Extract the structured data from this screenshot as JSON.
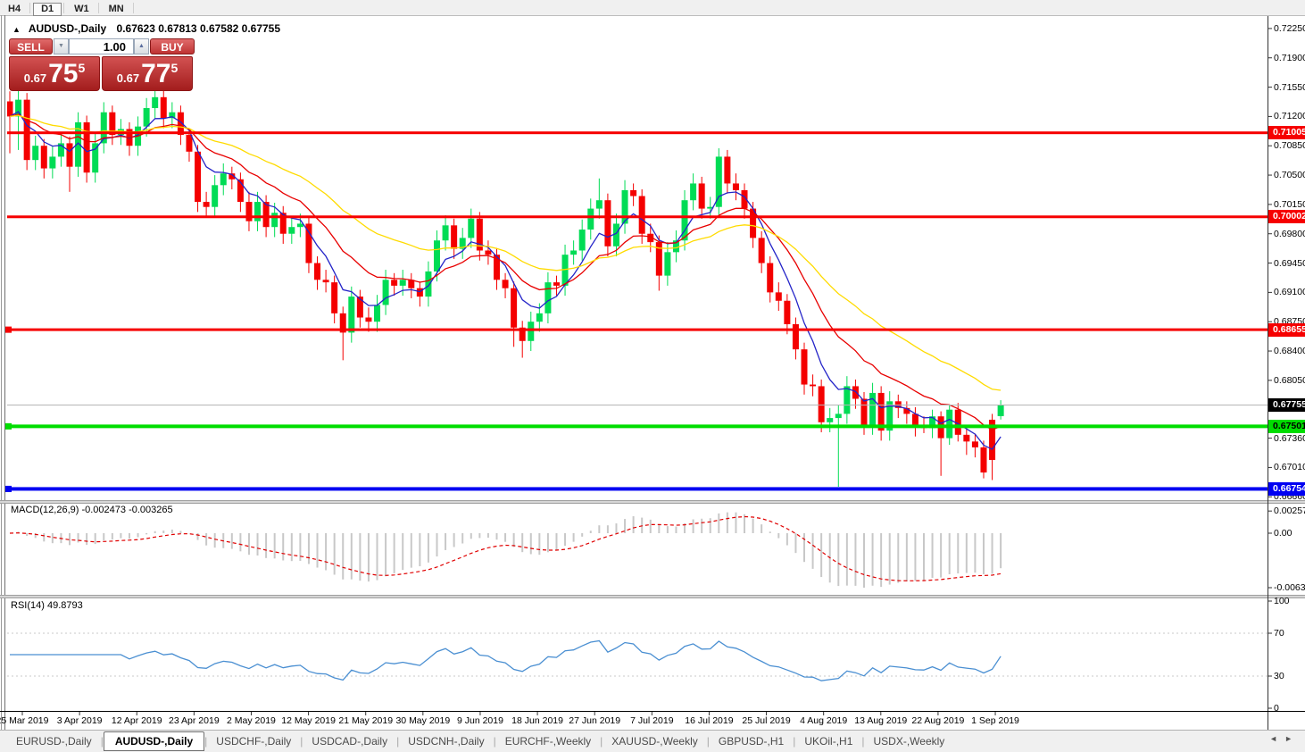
{
  "toolbar": {
    "timeframes": [
      {
        "label": "H4",
        "active": false
      },
      {
        "label": "D1",
        "active": true
      },
      {
        "label": "W1",
        "active": false
      },
      {
        "label": "MN",
        "active": false
      }
    ]
  },
  "title_bar": {
    "collapse_icon": "▲",
    "symbol": "AUDUSD-,Daily",
    "ohlc": "0.67623 0.67813 0.67582 0.67755"
  },
  "trade_panel": {
    "sell_label": "SELL",
    "buy_label": "BUY",
    "volume": "1.00",
    "spin_down_icon": "▼",
    "spin_up_icon": "▲",
    "sell_price": {
      "prefix": "0.67",
      "big": "75",
      "sup": "5"
    },
    "buy_price": {
      "prefix": "0.67",
      "big": "77",
      "sup": "5"
    }
  },
  "chart_data": {
    "type": "candlestick",
    "symbol": "AUDUSD-",
    "timeframe": "Daily",
    "bull_color": "#00DC55",
    "bear_color": "#F40000",
    "price_axis": {
      "ticks": [
        "0.72250",
        "0.71900",
        "0.71550",
        "0.71200",
        "0.70850",
        "0.70500",
        "0.70150",
        "0.69800",
        "0.69450",
        "0.69100",
        "0.68750",
        "0.68400",
        "0.68050",
        "0.67710",
        "0.67360",
        "0.67010",
        "0.66660"
      ],
      "top_price": 0.72345,
      "bottom_price": 0.6662
    },
    "time_axis": [
      "25 Mar 2019",
      "3 Apr 2019",
      "12 Apr 2019",
      "23 Apr 2019",
      "2 May 2019",
      "12 May 2019",
      "21 May 2019",
      "30 May 2019",
      "9 Jun 2019",
      "18 Jun 2019",
      "27 Jun 2019",
      "7 Jul 2019",
      "16 Jul 2019",
      "25 Jul 2019",
      "4 Aug 2019",
      "13 Aug 2019",
      "22 Aug 2019",
      "1 Sep 2019"
    ],
    "current_price": {
      "price": 0.67755,
      "label": "0.67755",
      "bg": "#000000",
      "text_color": "#ffffff",
      "line_color": "#b6b6b6"
    },
    "h_lines": [
      {
        "price": 0.71005,
        "label": "0.71005",
        "color": "#F60000",
        "thickness": 3,
        "label_text_color": "#ffffff",
        "handle": false
      },
      {
        "price": 0.70002,
        "label": "0.70002",
        "color": "#F60000",
        "thickness": 3,
        "label_text_color": "#ffffff",
        "handle": false
      },
      {
        "price": 0.68655,
        "label": "0.68655",
        "color": "#F60000",
        "thickness": 3,
        "label_text_color": "#ffffff",
        "handle": true
      },
      {
        "price": 0.67501,
        "label": "0.67501",
        "color": "#00DD00",
        "thickness": 4,
        "label_text_color": "#000000",
        "handle": true
      },
      {
        "price": 0.66754,
        "label": "0.66754",
        "color": "#0000F2",
        "thickness": 4,
        "label_text_color": "#ffffff",
        "handle": true
      }
    ],
    "moving_averages": [
      {
        "name": "fast-ma",
        "period": 6,
        "color": "#2424C8"
      },
      {
        "name": "mid-ma",
        "period": 14,
        "color": "#E80000"
      },
      {
        "name": "slow-ma",
        "period": 30,
        "color": "#FFDB00"
      }
    ],
    "candles": [
      [
        0.7138,
        0.715,
        0.7076,
        0.712
      ],
      [
        0.712,
        0.7152,
        0.708,
        0.714
      ],
      [
        0.714,
        0.7148,
        0.7056,
        0.7068
      ],
      [
        0.7068,
        0.7097,
        0.7056,
        0.7085
      ],
      [
        0.7085,
        0.7093,
        0.7046,
        0.7058
      ],
      [
        0.7058,
        0.7084,
        0.7046,
        0.7072
      ],
      [
        0.7072,
        0.71,
        0.706,
        0.7088
      ],
      [
        0.7088,
        0.7096,
        0.703,
        0.706
      ],
      [
        0.706,
        0.7125,
        0.7048,
        0.7113
      ],
      [
        0.7113,
        0.7121,
        0.7041,
        0.7053
      ],
      [
        0.7053,
        0.71,
        0.7041,
        0.7088
      ],
      [
        0.7088,
        0.7137,
        0.7076,
        0.7125
      ],
      [
        0.7125,
        0.7133,
        0.7086,
        0.7098
      ],
      [
        0.7098,
        0.7117,
        0.7086,
        0.7105
      ],
      [
        0.7105,
        0.7113,
        0.7073,
        0.7085
      ],
      [
        0.7085,
        0.712,
        0.7073,
        0.7108
      ],
      [
        0.7108,
        0.7142,
        0.7096,
        0.713
      ],
      [
        0.713,
        0.7151,
        0.7118,
        0.7143
      ],
      [
        0.7143,
        0.7151,
        0.7106,
        0.7118
      ],
      [
        0.7118,
        0.7137,
        0.7106,
        0.7125
      ],
      [
        0.7125,
        0.7133,
        0.7086,
        0.7098
      ],
      [
        0.7098,
        0.7106,
        0.7066,
        0.7078
      ],
      [
        0.7078,
        0.7086,
        0.7006,
        0.7018
      ],
      [
        0.7018,
        0.703,
        0.7,
        0.7012
      ],
      [
        0.7012,
        0.705,
        0.7,
        0.7038
      ],
      [
        0.7038,
        0.7064,
        0.7026,
        0.7052
      ],
      [
        0.7052,
        0.706,
        0.7033,
        0.7045
      ],
      [
        0.7045,
        0.7053,
        0.7006,
        0.7018
      ],
      [
        0.7018,
        0.703,
        0.6983,
        0.6995
      ],
      [
        0.6995,
        0.703,
        0.6983,
        0.7018
      ],
      [
        0.7018,
        0.7026,
        0.6976,
        0.6988
      ],
      [
        0.6988,
        0.7017,
        0.6976,
        0.7005
      ],
      [
        0.7005,
        0.7013,
        0.6968,
        0.698
      ],
      [
        0.698,
        0.7,
        0.6968,
        0.6988
      ],
      [
        0.6988,
        0.7004,
        0.6976,
        0.6992
      ],
      [
        0.6992,
        0.7,
        0.6933,
        0.6945
      ],
      [
        0.6945,
        0.6953,
        0.6913,
        0.6925
      ],
      [
        0.6925,
        0.6937,
        0.691,
        0.6922
      ],
      [
        0.6922,
        0.693,
        0.6873,
        0.6885
      ],
      [
        0.6885,
        0.6893,
        0.6829,
        0.6862
      ],
      [
        0.6862,
        0.6917,
        0.685,
        0.6905
      ],
      [
        0.6905,
        0.6913,
        0.6868,
        0.688
      ],
      [
        0.688,
        0.6892,
        0.6863,
        0.6875
      ],
      [
        0.6875,
        0.6907,
        0.6863,
        0.6895
      ],
      [
        0.6895,
        0.6937,
        0.6883,
        0.6925
      ],
      [
        0.6925,
        0.6933,
        0.6906,
        0.6918
      ],
      [
        0.6918,
        0.6937,
        0.6906,
        0.6925
      ],
      [
        0.6925,
        0.6933,
        0.6903,
        0.6915
      ],
      [
        0.6915,
        0.6923,
        0.6893,
        0.6905
      ],
      [
        0.6905,
        0.6947,
        0.6893,
        0.6935
      ],
      [
        0.6935,
        0.6984,
        0.6923,
        0.6972
      ],
      [
        0.6972,
        0.7002,
        0.696,
        0.699
      ],
      [
        0.699,
        0.6998,
        0.695,
        0.6962
      ],
      [
        0.6962,
        0.6987,
        0.695,
        0.6975
      ],
      [
        0.6975,
        0.701,
        0.6963,
        0.6998
      ],
      [
        0.6998,
        0.7006,
        0.6948,
        0.696
      ],
      [
        0.696,
        0.6972,
        0.6943,
        0.6955
      ],
      [
        0.6955,
        0.6963,
        0.6913,
        0.6925
      ],
      [
        0.6925,
        0.6933,
        0.6903,
        0.6915
      ],
      [
        0.6915,
        0.6923,
        0.6845,
        0.6868
      ],
      [
        0.6868,
        0.6876,
        0.6832,
        0.6852
      ],
      [
        0.6852,
        0.6887,
        0.684,
        0.6875
      ],
      [
        0.6875,
        0.6897,
        0.6863,
        0.6885
      ],
      [
        0.6885,
        0.6934,
        0.6873,
        0.6922
      ],
      [
        0.6922,
        0.693,
        0.6906,
        0.6918
      ],
      [
        0.6918,
        0.6967,
        0.6906,
        0.6955
      ],
      [
        0.6955,
        0.6972,
        0.6943,
        0.696
      ],
      [
        0.696,
        0.6997,
        0.6948,
        0.6985
      ],
      [
        0.6985,
        0.7022,
        0.6973,
        0.701
      ],
      [
        0.701,
        0.7046,
        0.6998,
        0.702
      ],
      [
        0.702,
        0.7028,
        0.6953,
        0.6965
      ],
      [
        0.6965,
        0.7004,
        0.6953,
        0.6992
      ],
      [
        0.6992,
        0.7044,
        0.698,
        0.7032
      ],
      [
        0.7032,
        0.704,
        0.7013,
        0.7025
      ],
      [
        0.7025,
        0.7033,
        0.6968,
        0.698
      ],
      [
        0.698,
        0.6992,
        0.6958,
        0.697
      ],
      [
        0.697,
        0.6978,
        0.6912,
        0.693
      ],
      [
        0.693,
        0.697,
        0.6918,
        0.6958
      ],
      [
        0.6958,
        0.6984,
        0.6946,
        0.6972
      ],
      [
        0.6972,
        0.7032,
        0.696,
        0.702
      ],
      [
        0.702,
        0.7052,
        0.7008,
        0.704
      ],
      [
        0.704,
        0.7048,
        0.6998,
        0.701
      ],
      [
        0.701,
        0.7024,
        0.6998,
        0.7012
      ],
      [
        0.7012,
        0.7082,
        0.7,
        0.7072
      ],
      [
        0.7072,
        0.708,
        0.7028,
        0.704
      ],
      [
        0.704,
        0.7052,
        0.702,
        0.7032
      ],
      [
        0.7032,
        0.704,
        0.6998,
        0.701
      ],
      [
        0.701,
        0.7018,
        0.6963,
        0.6975
      ],
      [
        0.6975,
        0.6983,
        0.6933,
        0.6945
      ],
      [
        0.6945,
        0.6953,
        0.6898,
        0.691
      ],
      [
        0.691,
        0.6922,
        0.6888,
        0.69
      ],
      [
        0.69,
        0.6908,
        0.686,
        0.6872
      ],
      [
        0.6872,
        0.688,
        0.683,
        0.6842
      ],
      [
        0.6842,
        0.685,
        0.6788,
        0.68
      ],
      [
        0.68,
        0.6812,
        0.6786,
        0.6798
      ],
      [
        0.6798,
        0.6806,
        0.6743,
        0.6755
      ],
      [
        0.6755,
        0.6772,
        0.6743,
        0.676
      ],
      [
        0.676,
        0.6776,
        0.6678,
        0.6765
      ],
      [
        0.6765,
        0.681,
        0.6753,
        0.6798
      ],
      [
        0.6798,
        0.6806,
        0.6771,
        0.6783
      ],
      [
        0.6783,
        0.6791,
        0.674,
        0.6752
      ],
      [
        0.6752,
        0.6802,
        0.674,
        0.679
      ],
      [
        0.679,
        0.6798,
        0.6733,
        0.6745
      ],
      [
        0.6745,
        0.6792,
        0.6733,
        0.678
      ],
      [
        0.678,
        0.6788,
        0.676,
        0.6772
      ],
      [
        0.6772,
        0.678,
        0.6753,
        0.6765
      ],
      [
        0.6765,
        0.6773,
        0.6738,
        0.675
      ],
      [
        0.675,
        0.6762,
        0.6742,
        0.6748
      ],
      [
        0.6748,
        0.677,
        0.6736,
        0.6762
      ],
      [
        0.6762,
        0.6768,
        0.6691,
        0.6736
      ],
      [
        0.6736,
        0.6775,
        0.6728,
        0.677
      ],
      [
        0.677,
        0.6778,
        0.6732,
        0.674
      ],
      [
        0.674,
        0.6748,
        0.6716,
        0.6732
      ],
      [
        0.6732,
        0.6741,
        0.6713,
        0.6725
      ],
      [
        0.6725,
        0.6733,
        0.6688,
        0.6695
      ],
      [
        0.6758,
        0.6765,
        0.6686,
        0.671
      ],
      [
        0.67623,
        0.67813,
        0.67582,
        0.67755
      ]
    ],
    "macd": {
      "label": "MACD(12,26,9) -0.002473 -0.003265",
      "params": [
        12,
        26,
        9
      ],
      "main_value": "-0.002473",
      "signal_value": "-0.003265",
      "axis_ticks": [
        "0.002574",
        "0.00",
        "-0.006326"
      ],
      "hist_color": "#C8C8C8",
      "signal_color": "#E00000",
      "min": -0.006326
    },
    "rsi": {
      "label": "RSI(14) 49.8793",
      "period": 14,
      "value": "49.8793",
      "axis_ticks": [
        "100",
        "70",
        "30",
        "0"
      ],
      "levels": [
        70,
        30
      ],
      "line_color": "#4A8FD2",
      "level_color": "#C8C8C8"
    }
  },
  "tabbar": {
    "items": [
      {
        "label": "EURUSD-,Daily",
        "active": false
      },
      {
        "label": "AUDUSD-,Daily",
        "active": true
      },
      {
        "label": "USDCHF-,Daily",
        "active": false
      },
      {
        "label": "USDCAD-,Daily",
        "active": false
      },
      {
        "label": "USDCNH-,Daily",
        "active": false
      },
      {
        "label": "EURCHF-,Weekly",
        "active": false
      },
      {
        "label": "XAUUSD-,Weekly",
        "active": false
      },
      {
        "label": "GBPUSD-,H1",
        "active": false
      },
      {
        "label": "UKOil-,H1",
        "active": false
      },
      {
        "label": "USDX-,Weekly",
        "active": false
      }
    ],
    "scroll_left_icon": "◄",
    "scroll_right_icon": "►"
  }
}
